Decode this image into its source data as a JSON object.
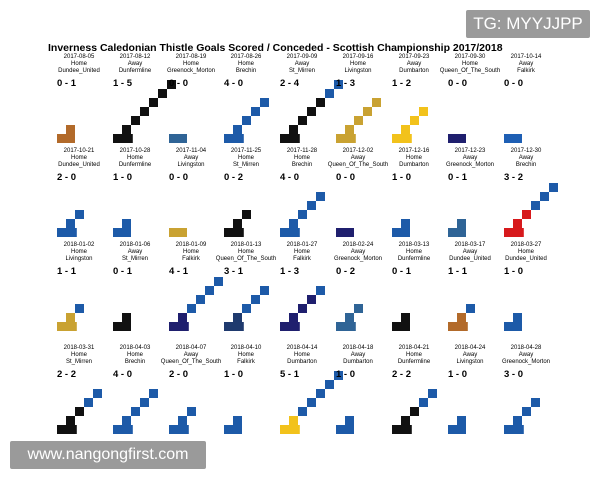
{
  "watermarks": {
    "top_right": "TG: MYYJJPP",
    "bottom_left": "www.nangongfirst.com"
  },
  "chart_data": {
    "type": "heatmap",
    "title": "Inverness Caledonian Thistle Goals Scored / Conceded - Scottish Championship 2017/2018",
    "colors": {
      "Dundee_United": "#b26a2a",
      "Dunfermline": "#111111",
      "Greenock_Morton": "#2f6496",
      "Brechin": "#1d5aa8",
      "St_Mirren": "#111111",
      "Livingston": "#c9a232",
      "Dumbarton": "#f2c21b",
      "Queen_Of_The_South": "#1f1f6e",
      "Falkirk": "#1e5fb4",
      "Brechin_accent": "#d7191c"
    },
    "matches": [
      {
        "date": "2017-08-05",
        "venue": "Home",
        "opponent": "Dundee_United",
        "score": "0 - 1",
        "scored": 0,
        "conceded": 1,
        "primary": "#b26a2a",
        "secondary": "#b26a2a"
      },
      {
        "date": "2017-08-12",
        "venue": "Away",
        "opponent": "Dunfermline",
        "score": "1 - 5",
        "scored": 1,
        "conceded": 5,
        "primary": "#111111",
        "secondary": "#111111"
      },
      {
        "date": "2017-08-19",
        "venue": "Home",
        "opponent": "Greenock_Morton",
        "score": "0 - 0",
        "scored": 0,
        "conceded": 0,
        "primary": "#2f6496",
        "secondary": "#2f6496"
      },
      {
        "date": "2017-08-26",
        "venue": "Home",
        "opponent": "Brechin",
        "score": "4 - 0",
        "scored": 4,
        "conceded": 0,
        "primary": "#1d5aa8",
        "secondary": "#1d5aa8"
      },
      {
        "date": "2017-09-09",
        "venue": "Away",
        "opponent": "St_Mirren",
        "score": "2 - 4",
        "scored": 2,
        "conceded": 4,
        "primary": "#111111",
        "secondary": "#1d5aa8"
      },
      {
        "date": "2017-09-16",
        "venue": "Home",
        "opponent": "Livingston",
        "score": "1 - 3",
        "scored": 1,
        "conceded": 3,
        "primary": "#c9a232",
        "secondary": "#c9a232"
      },
      {
        "date": "2017-09-23",
        "venue": "Away",
        "opponent": "Dumbarton",
        "score": "1 - 2",
        "scored": 1,
        "conceded": 2,
        "primary": "#f2c21b",
        "secondary": "#f2c21b"
      },
      {
        "date": "2017-09-30",
        "venue": "Home",
        "opponent": "Queen_Of_The_South",
        "score": "0 - 0",
        "scored": 0,
        "conceded": 0,
        "primary": "#1f1f6e",
        "secondary": "#1f1f6e"
      },
      {
        "date": "2017-10-14",
        "venue": "Away",
        "opponent": "Falkirk",
        "score": "0 - 0",
        "scored": 0,
        "conceded": 0,
        "primary": "#1e5fb4",
        "secondary": "#1e5fb4"
      },
      {
        "date": "2017-10-21",
        "venue": "Home",
        "opponent": "Dundee_United",
        "score": "2 - 0",
        "scored": 2,
        "conceded": 0,
        "primary": "#1d5aa8",
        "secondary": "#1d5aa8"
      },
      {
        "date": "2017-10-28",
        "venue": "Home",
        "opponent": "Dunfermline",
        "score": "1 - 0",
        "scored": 1,
        "conceded": 0,
        "primary": "#1d5aa8",
        "secondary": "#1d5aa8"
      },
      {
        "date": "2017-11-04",
        "venue": "Away",
        "opponent": "Livingston",
        "score": "0 - 0",
        "scored": 0,
        "conceded": 0,
        "primary": "#c9a232",
        "secondary": "#c9a232"
      },
      {
        "date": "2017-11-25",
        "venue": "Home",
        "opponent": "St_Mirren",
        "score": "0 - 2",
        "scored": 0,
        "conceded": 2,
        "primary": "#111111",
        "secondary": "#111111"
      },
      {
        "date": "2017-11-28",
        "venue": "Home",
        "opponent": "Brechin",
        "score": "4 - 0",
        "scored": 4,
        "conceded": 0,
        "primary": "#1d5aa8",
        "secondary": "#1d5aa8"
      },
      {
        "date": "2017-12-02",
        "venue": "Away",
        "opponent": "Queen_Of_The_South",
        "score": "0 - 0",
        "scored": 0,
        "conceded": 0,
        "primary": "#1f1f6e",
        "secondary": "#1f1f6e"
      },
      {
        "date": "2017-12-16",
        "venue": "Home",
        "opponent": "Dumbarton",
        "score": "1 - 0",
        "scored": 1,
        "conceded": 0,
        "primary": "#1d5aa8",
        "secondary": "#1d5aa8"
      },
      {
        "date": "2017-12-23",
        "venue": "Away",
        "opponent": "Greenock_Morton",
        "score": "0 - 1",
        "scored": 0,
        "conceded": 1,
        "primary": "#2f6496",
        "secondary": "#2f6496"
      },
      {
        "date": "2017-12-30",
        "venue": "Away",
        "opponent": "Brechin",
        "score": "3 - 2",
        "scored": 3,
        "conceded": 2,
        "primary": "#d7191c",
        "secondary": "#1d5aa8"
      },
      {
        "date": "2018-01-02",
        "venue": "Home",
        "opponent": "Livingston",
        "score": "1 - 1",
        "scored": 1,
        "conceded": 1,
        "primary": "#c9a232",
        "secondary": "#1d5aa8"
      },
      {
        "date": "2018-01-06",
        "venue": "Away",
        "opponent": "St_Mirren",
        "score": "0 - 1",
        "scored": 0,
        "conceded": 1,
        "primary": "#111111",
        "secondary": "#111111"
      },
      {
        "date": "2018-01-09",
        "venue": "Home",
        "opponent": "Falkirk",
        "score": "4 - 1",
        "scored": 4,
        "conceded": 1,
        "primary": "#1f1f6e",
        "secondary": "#1d5aa8"
      },
      {
        "date": "2018-01-13",
        "venue": "Home",
        "opponent": "Queen_Of_The_South",
        "score": "3 - 1",
        "scored": 3,
        "conceded": 1,
        "primary": "#1f3a6e",
        "secondary": "#1d5aa8"
      },
      {
        "date": "2018-01-27",
        "venue": "Home",
        "opponent": "Falkirk",
        "score": "1 - 3",
        "scored": 1,
        "conceded": 3,
        "primary": "#1f1f6e",
        "secondary": "#1d5aa8"
      },
      {
        "date": "2018-02-24",
        "venue": "Away",
        "opponent": "Greenock_Morton",
        "score": "0 - 2",
        "scored": 0,
        "conceded": 2,
        "primary": "#2f6496",
        "secondary": "#2f6496"
      },
      {
        "date": "2018-03-13",
        "venue": "Home",
        "opponent": "Dunfermline",
        "score": "0 - 1",
        "scored": 0,
        "conceded": 1,
        "primary": "#111111",
        "secondary": "#111111"
      },
      {
        "date": "2018-03-17",
        "venue": "Away",
        "opponent": "Dundee_United",
        "score": "1 - 1",
        "scored": 1,
        "conceded": 1,
        "primary": "#b26a2a",
        "secondary": "#1d5aa8"
      },
      {
        "date": "2018-03-27",
        "venue": "Home",
        "opponent": "Dundee_United",
        "score": "1 - 0",
        "scored": 1,
        "conceded": 0,
        "primary": "#1d5aa8",
        "secondary": "#1d5aa8"
      },
      {
        "date": "2018-03-31",
        "venue": "Home",
        "opponent": "St_Mirren",
        "score": "2 - 2",
        "scored": 2,
        "conceded": 2,
        "primary": "#111111",
        "secondary": "#1d5aa8"
      },
      {
        "date": "2018-04-03",
        "venue": "Home",
        "opponent": "Brechin",
        "score": "4 - 0",
        "scored": 4,
        "conceded": 0,
        "primary": "#1d5aa8",
        "secondary": "#1d5aa8"
      },
      {
        "date": "2018-04-07",
        "venue": "Away",
        "opponent": "Queen_Of_The_South",
        "score": "2 - 0",
        "scored": 2,
        "conceded": 0,
        "primary": "#1d5aa8",
        "secondary": "#1d5aa8"
      },
      {
        "date": "2018-04-10",
        "venue": "Home",
        "opponent": "Falkirk",
        "score": "1 - 0",
        "scored": 1,
        "conceded": 0,
        "primary": "#1d5aa8",
        "secondary": "#1d5aa8"
      },
      {
        "date": "2018-04-14",
        "venue": "Home",
        "opponent": "Dumbarton",
        "score": "5 - 1",
        "scored": 5,
        "conceded": 1,
        "primary": "#f2c21b",
        "secondary": "#1d5aa8"
      },
      {
        "date": "2018-04-18",
        "venue": "Away",
        "opponent": "Dumbarton",
        "score": "1 - 0",
        "scored": 1,
        "conceded": 0,
        "primary": "#1d5aa8",
        "secondary": "#1d5aa8"
      },
      {
        "date": "2018-04-21",
        "venue": "Home",
        "opponent": "Dunfermline",
        "score": "2 - 2",
        "scored": 2,
        "conceded": 2,
        "primary": "#111111",
        "secondary": "#1d5aa8"
      },
      {
        "date": "2018-04-24",
        "venue": "Away",
        "opponent": "Livingston",
        "score": "1 - 0",
        "scored": 1,
        "conceded": 0,
        "primary": "#1d5aa8",
        "secondary": "#1d5aa8"
      },
      {
        "date": "2018-04-28",
        "venue": "Away",
        "opponent": "Greenock_Morton",
        "score": "3 - 0",
        "scored": 3,
        "conceded": 0,
        "primary": "#1d5aa8",
        "secondary": "#1d5aa8"
      }
    ]
  }
}
